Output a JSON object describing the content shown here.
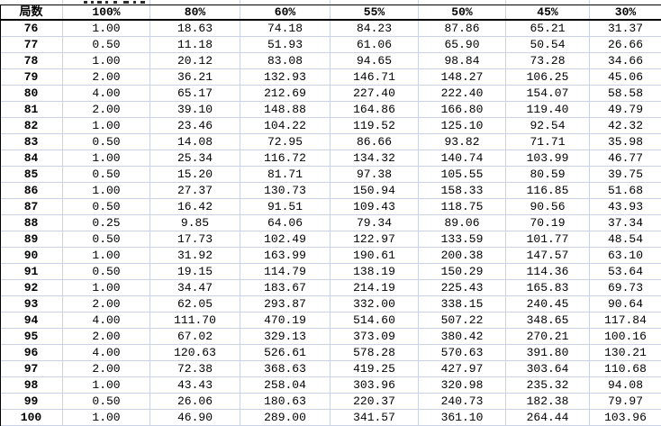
{
  "table": {
    "columns": [
      "局数",
      "100%",
      "80%",
      "60%",
      "55%",
      "50%",
      "45%",
      "30%"
    ],
    "rows": [
      [
        "76",
        "1.00",
        "18.63",
        "74.18",
        "84.23",
        "87.86",
        "65.21",
        "31.37"
      ],
      [
        "77",
        "0.50",
        "11.18",
        "51.93",
        "61.06",
        "65.90",
        "50.54",
        "26.66"
      ],
      [
        "78",
        "1.00",
        "20.12",
        "83.08",
        "94.65",
        "98.84",
        "73.28",
        "34.66"
      ],
      [
        "79",
        "2.00",
        "36.21",
        "132.93",
        "146.71",
        "148.27",
        "106.25",
        "45.06"
      ],
      [
        "80",
        "4.00",
        "65.17",
        "212.69",
        "227.40",
        "222.40",
        "154.07",
        "58.58"
      ],
      [
        "81",
        "2.00",
        "39.10",
        "148.88",
        "164.86",
        "166.80",
        "119.40",
        "49.79"
      ],
      [
        "82",
        "1.00",
        "23.46",
        "104.22",
        "119.52",
        "125.10",
        "92.54",
        "42.32"
      ],
      [
        "83",
        "0.50",
        "14.08",
        "72.95",
        "86.66",
        "93.82",
        "71.71",
        "35.98"
      ],
      [
        "84",
        "1.00",
        "25.34",
        "116.72",
        "134.32",
        "140.74",
        "103.99",
        "46.77"
      ],
      [
        "85",
        "0.50",
        "15.20",
        "81.71",
        "97.38",
        "105.55",
        "80.59",
        "39.75"
      ],
      [
        "86",
        "1.00",
        "27.37",
        "130.73",
        "150.94",
        "158.33",
        "116.85",
        "51.68"
      ],
      [
        "87",
        "0.50",
        "16.42",
        "91.51",
        "109.43",
        "118.75",
        "90.56",
        "43.93"
      ],
      [
        "88",
        "0.25",
        "9.85",
        "64.06",
        "79.34",
        "89.06",
        "70.19",
        "37.34"
      ],
      [
        "89",
        "0.50",
        "17.73",
        "102.49",
        "122.97",
        "133.59",
        "101.77",
        "48.54"
      ],
      [
        "90",
        "1.00",
        "31.92",
        "163.99",
        "190.61",
        "200.38",
        "147.57",
        "63.10"
      ],
      [
        "91",
        "0.50",
        "19.15",
        "114.79",
        "138.19",
        "150.29",
        "114.36",
        "53.64"
      ],
      [
        "92",
        "1.00",
        "34.47",
        "183.67",
        "214.19",
        "225.43",
        "165.83",
        "69.73"
      ],
      [
        "93",
        "2.00",
        "62.05",
        "293.87",
        "332.00",
        "338.15",
        "240.45",
        "90.64"
      ],
      [
        "94",
        "4.00",
        "111.70",
        "470.19",
        "514.60",
        "507.22",
        "348.65",
        "117.84"
      ],
      [
        "95",
        "2.00",
        "67.02",
        "329.13",
        "373.09",
        "380.42",
        "270.21",
        "100.16"
      ],
      [
        "96",
        "4.00",
        "120.63",
        "526.61",
        "578.28",
        "570.63",
        "391.80",
        "130.21"
      ],
      [
        "97",
        "2.00",
        "72.38",
        "368.63",
        "419.25",
        "427.97",
        "303.64",
        "110.68"
      ],
      [
        "98",
        "1.00",
        "43.43",
        "258.04",
        "303.96",
        "320.98",
        "235.32",
        "94.08"
      ],
      [
        "99",
        "0.50",
        "26.06",
        "180.63",
        "220.37",
        "240.73",
        "182.38",
        "79.97"
      ],
      [
        "100",
        "1.00",
        "46.90",
        "289.00",
        "341.57",
        "361.10",
        "264.44",
        "103.96"
      ]
    ]
  },
  "colors": {
    "grid_line": "#cbd2e6",
    "header_border": "#000000",
    "text": "#000000",
    "background": "#ffffff"
  }
}
